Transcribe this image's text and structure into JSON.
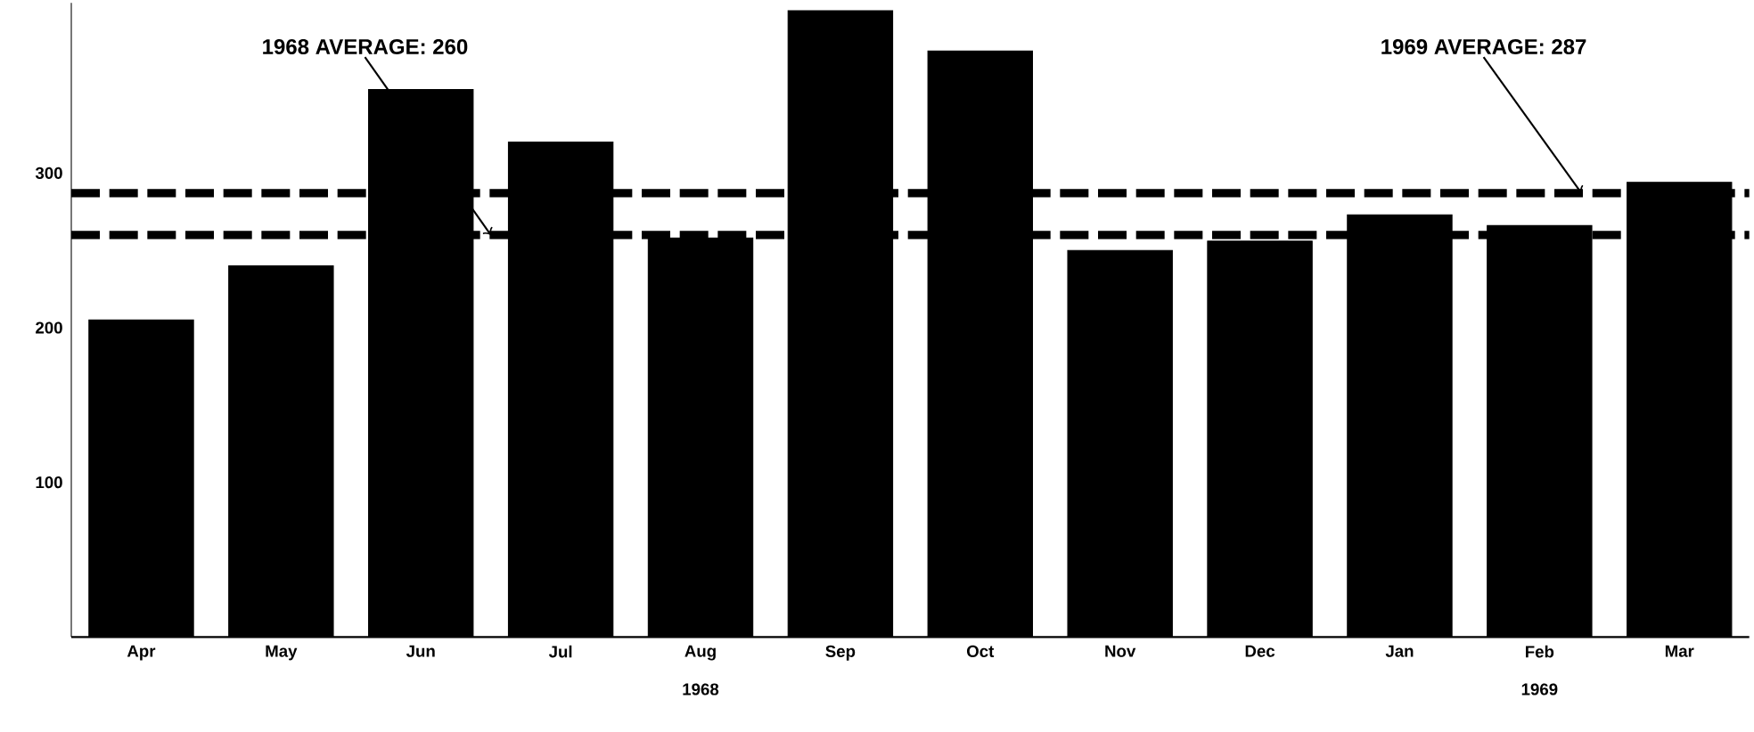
{
  "chart_data": {
    "type": "bar",
    "categories": [
      "Apr",
      "May",
      "Jun",
      "Jul",
      "Aug",
      "Sep",
      "Oct",
      "Nov",
      "Dec",
      "Jan",
      "Feb",
      "Mar"
    ],
    "values": [
      205,
      240,
      354,
      320,
      258,
      405,
      379,
      250,
      256,
      273,
      266,
      294
    ],
    "color": "#000000",
    "ylim": [
      0,
      410
    ],
    "yticks": [
      100,
      200,
      300
    ],
    "ref_lines": [
      {
        "axis": "y",
        "value": 260,
        "label": "1968 AVERAGE: 260",
        "color": "#000000",
        "line_style": "dashed"
      },
      {
        "axis": "y",
        "value": 287,
        "label": "1969 AVERAGE: 287",
        "color": "#000000",
        "line_style": "dashed"
      }
    ],
    "annotations": [
      "1968",
      "1969"
    ]
  }
}
